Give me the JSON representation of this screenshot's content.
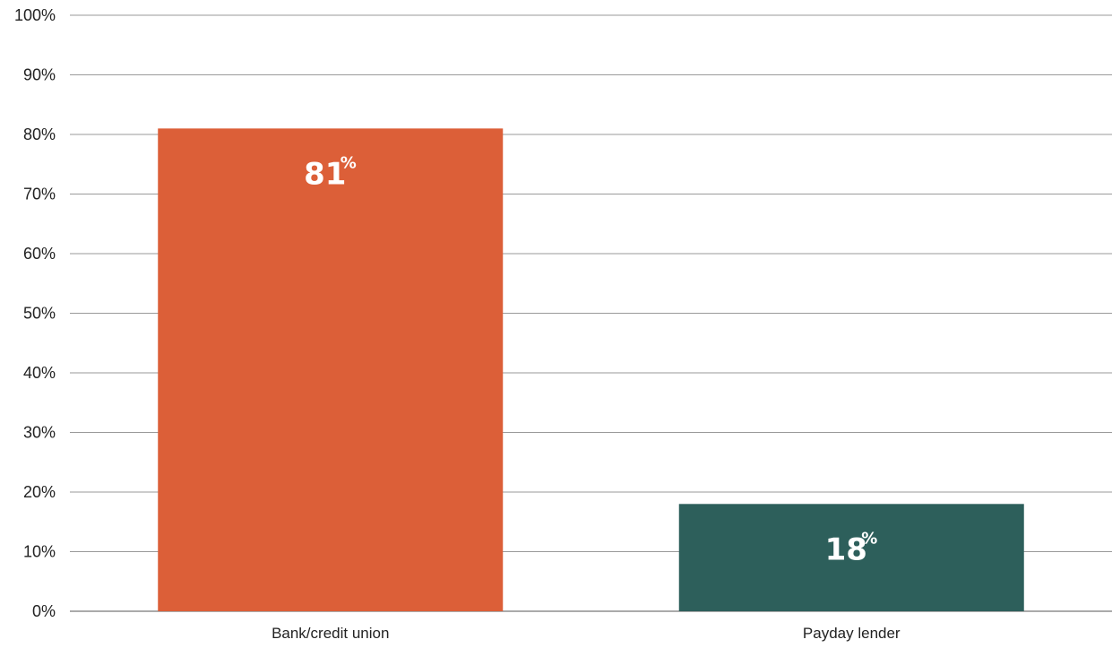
{
  "chart_data": {
    "type": "bar",
    "categories": [
      "Bank/credit union",
      "Payday lender"
    ],
    "values": [
      81,
      18
    ],
    "data_labels": [
      "81",
      "18"
    ],
    "data_label_unit": "%",
    "bar_colors": [
      "#dc5f38",
      "#2d5f5b"
    ],
    "ylim": [
      0,
      100
    ],
    "yticks": [
      0,
      10,
      20,
      30,
      40,
      50,
      60,
      70,
      80,
      90,
      100
    ],
    "ytick_labels": [
      "0%",
      "10%",
      "20%",
      "30%",
      "40%",
      "50%",
      "60%",
      "70%",
      "80%",
      "90%",
      "100%"
    ],
    "grid": true,
    "gridline_color": "#9a9a9a",
    "title": "",
    "xlabel": "",
    "ylabel": ""
  }
}
